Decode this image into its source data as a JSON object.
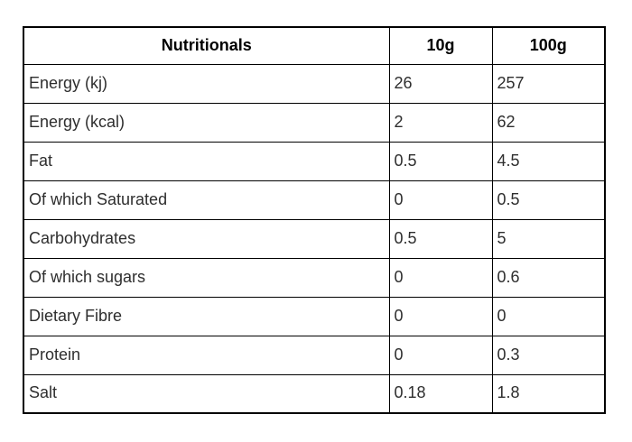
{
  "page": {
    "background_color": "#ffffff",
    "border_color": "#000000",
    "header_text_color": "#000000",
    "body_text_color": "#2e2e2e"
  },
  "table": {
    "headers": [
      {
        "label": "Nutritionals"
      },
      {
        "label": "10g"
      },
      {
        "label": "100g"
      }
    ],
    "rows": [
      {
        "label": "Energy (kj)",
        "v10": "26",
        "v100": "257"
      },
      {
        "label": "Energy (kcal)",
        "v10": "2",
        "v100": "62"
      },
      {
        "label": "Fat",
        "v10": "0.5",
        "v100": "4.5"
      },
      {
        "label": "Of which Saturated",
        "v10": "0",
        "v100": "0.5"
      },
      {
        "label": "Carbohydrates",
        "v10": "0.5",
        "v100": "5"
      },
      {
        "label": "Of which sugars",
        "v10": "0",
        "v100": "0.6"
      },
      {
        "label": "Dietary Fibre",
        "v10": "0",
        "v100": "0"
      },
      {
        "label": "Protein",
        "v10": "0",
        "v100": "0.3"
      },
      {
        "label": "Salt",
        "v10": "0.18",
        "v100": "1.8"
      }
    ]
  },
  "chart_data": {
    "type": "table",
    "title": "Nutritionals",
    "columns": [
      "Nutritionals",
      "10g",
      "100g"
    ],
    "rows": [
      [
        "Energy (kj)",
        26,
        257
      ],
      [
        "Energy (kcal)",
        2,
        62
      ],
      [
        "Fat",
        0.5,
        4.5
      ],
      [
        "Of which Saturated",
        0,
        0.5
      ],
      [
        "Carbohydrates",
        0.5,
        5
      ],
      [
        "Of which sugars",
        0,
        0.6
      ],
      [
        "Dietary Fibre",
        0,
        0
      ],
      [
        "Protein",
        0,
        0.3
      ],
      [
        "Salt",
        0.18,
        1.8
      ]
    ]
  }
}
